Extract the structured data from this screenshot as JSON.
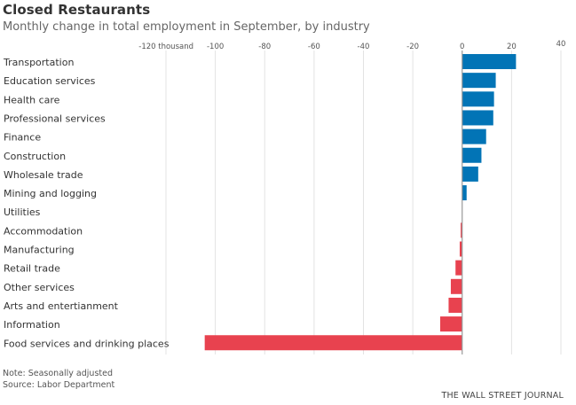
{
  "header": {
    "title": "Closed Restaurants",
    "subtitle": "Monthly change in total employment in September, by industry"
  },
  "footer": {
    "note": "Note: Seasonally adjusted",
    "source": "Source: Labor Department",
    "brand": "THE WALL STREET JOURNAL"
  },
  "colors": {
    "positive": "#0274b6",
    "negative": "#e8424f",
    "grid": "#e3e3e3",
    "axis": "#999999"
  },
  "chart_data": {
    "type": "bar",
    "orientation": "horizontal",
    "title": "Closed Restaurants",
    "subtitle": "Monthly change in total employment in September, by industry",
    "xlabel": "",
    "ylabel": "",
    "xlim": [
      -120,
      40
    ],
    "grid": true,
    "ticks": [
      -120,
      -100,
      -80,
      -60,
      -40,
      -20,
      0,
      20,
      40
    ],
    "tick_labels": [
      "-120 thousand",
      "-100",
      "-80",
      "-60",
      "-40",
      "-20",
      "0",
      "20",
      "40"
    ],
    "categories": [
      "Transportation",
      "Education services",
      "Health care",
      "Professional services",
      "Finance",
      "Construction",
      "Wholesale trade",
      "Mining and logging",
      "Utilities",
      "Accommodation",
      "Manufacturing",
      "Retail trade",
      "Other services",
      "Arts and entertianment",
      "Information",
      "Food services and drinking places"
    ],
    "values": [
      21.8,
      13.6,
      12.9,
      12.6,
      9.7,
      7.8,
      6.5,
      1.8,
      0,
      -0.6,
      -1,
      -2.7,
      -4.6,
      -5.5,
      -8.9,
      -104.3
    ]
  }
}
